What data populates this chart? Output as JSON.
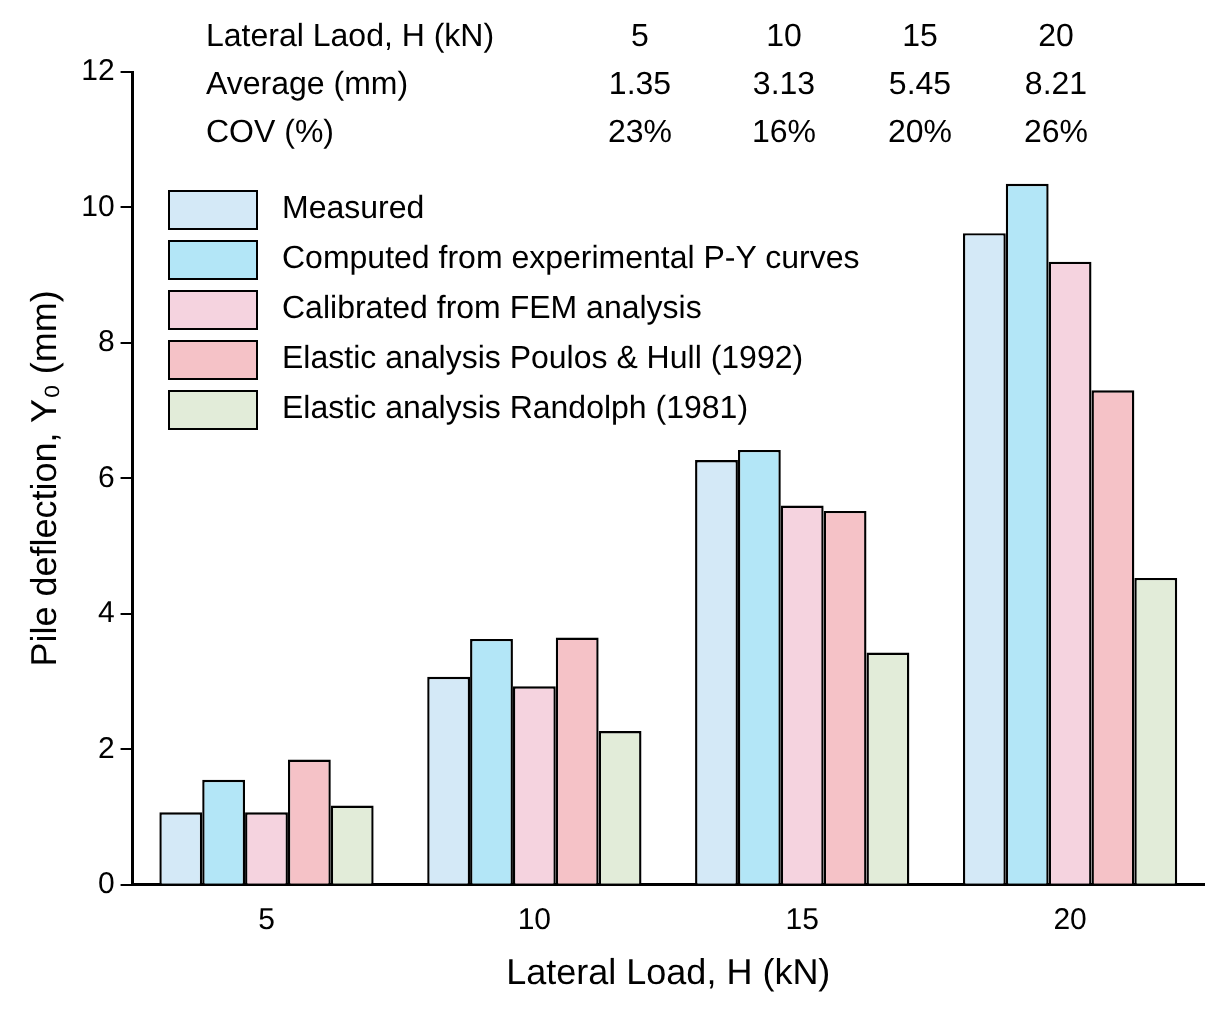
{
  "chart_data": {
    "type": "bar",
    "xlabel": "Lateral Load, H (kN)",
    "ylabel": "Pile deflection, Y₀ (mm)",
    "categories": [
      "5",
      "10",
      "15",
      "20"
    ],
    "series": [
      {
        "name": "Measured",
        "color": "#d4e9f7",
        "values": [
          1.07,
          3.07,
          6.27,
          9.62
        ]
      },
      {
        "name": "Computed from experimental P-Y curves",
        "color": "#b3e6f7",
        "values": [
          1.55,
          3.63,
          6.42,
          10.35
        ]
      },
      {
        "name": "Calibrated from FEM analysis",
        "color": "#f5d3df",
        "values": [
          1.07,
          2.93,
          5.6,
          9.2
        ]
      },
      {
        "name": "Elastic analysis Poulos & Hull (1992)",
        "color": "#f5c2c7",
        "values": [
          1.85,
          3.65,
          5.52,
          7.3
        ]
      },
      {
        "name": "Elastic analysis Randolph (1981)",
        "color": "#e2ecd9",
        "values": [
          1.17,
          2.27,
          3.43,
          4.53
        ]
      }
    ],
    "ylim": [
      0,
      12
    ],
    "yticks": [
      0,
      2,
      4,
      6,
      8,
      10,
      12
    ],
    "grid": false,
    "legend": "top left",
    "annotations": [
      "Lateral Laod, H (kN)",
      "5",
      "10",
      "15",
      "20",
      "Average (mm)",
      "1.35",
      "3.13",
      "5.45",
      "8.21",
      "COV (%)",
      "23%",
      "16%",
      "20%",
      "26%"
    ]
  }
}
